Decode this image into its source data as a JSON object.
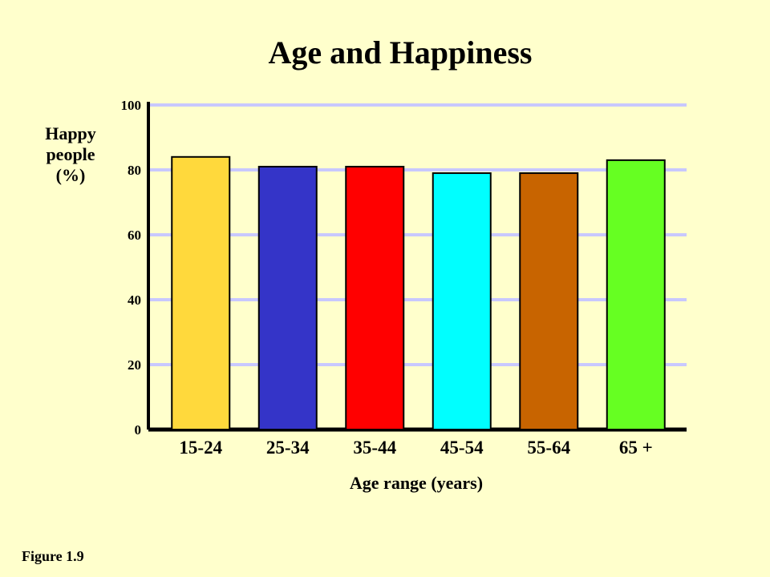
{
  "figure_label": "Figure 1.9",
  "chart_data": {
    "type": "bar",
    "title": "Age and Happiness",
    "ylabel_lines": [
      "Happy",
      "people",
      "(%)"
    ],
    "xlabel": "Age range (years)",
    "categories": [
      "15-24",
      "25-34",
      "35-44",
      "45-54",
      "55-64",
      "65 +"
    ],
    "values": [
      84,
      81,
      81,
      79,
      79,
      83
    ],
    "colors": [
      "#ffd93c",
      "#3434c8",
      "#ff0000",
      "#00ffff",
      "#c86400",
      "#66ff22"
    ],
    "ylim": [
      0,
      100
    ],
    "yticks": [
      0,
      20,
      40,
      60,
      80,
      100
    ],
    "grid": true,
    "grid_color": "#c8c8ff"
  }
}
